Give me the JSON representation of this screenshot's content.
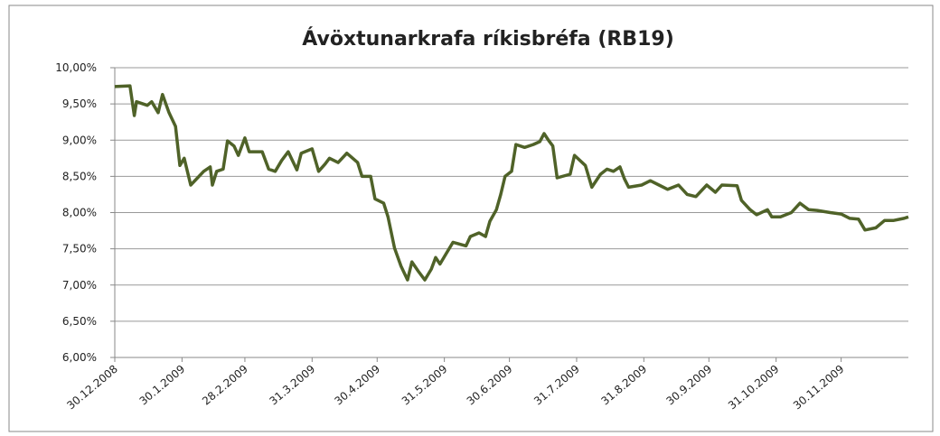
{
  "chart_data": {
    "type": "line",
    "title": "Ávöxtunarkrafa ríkisbréfa (RB19)",
    "x": [
      "2008-12-30",
      "2009-01-06",
      "2009-01-08",
      "2009-01-09",
      "2009-01-14",
      "2009-01-16",
      "2009-01-19",
      "2009-01-21",
      "2009-01-24",
      "2009-01-27",
      "2009-01-29",
      "2009-01-31",
      "2009-02-03",
      "2009-02-09",
      "2009-02-12",
      "2009-02-13",
      "2009-02-15",
      "2009-02-18",
      "2009-02-20",
      "2009-02-23",
      "2009-02-25",
      "2009-02-28",
      "2009-03-02",
      "2009-03-08",
      "2009-03-11",
      "2009-03-14",
      "2009-03-17",
      "2009-03-20",
      "2009-03-24",
      "2009-03-26",
      "2009-03-31",
      "2009-04-03",
      "2009-04-06",
      "2009-04-08",
      "2009-04-12",
      "2009-04-16",
      "2009-04-21",
      "2009-04-23",
      "2009-04-27",
      "2009-04-29",
      "2009-05-03",
      "2009-05-05",
      "2009-05-08",
      "2009-05-11",
      "2009-05-14",
      "2009-05-16",
      "2009-05-19",
      "2009-05-22",
      "2009-05-25",
      "2009-05-27",
      "2009-05-29",
      "2009-06-01",
      "2009-06-04",
      "2009-06-10",
      "2009-06-12",
      "2009-06-16",
      "2009-06-19",
      "2009-06-21",
      "2009-06-24",
      "2009-06-26",
      "2009-06-28",
      "2009-07-01",
      "2009-07-03",
      "2009-07-07",
      "2009-07-11",
      "2009-07-14",
      "2009-07-16",
      "2009-07-18",
      "2009-07-20",
      "2009-07-22",
      "2009-07-28",
      "2009-07-30",
      "2009-08-04",
      "2009-08-07",
      "2009-08-11",
      "2009-08-14",
      "2009-08-17",
      "2009-08-20",
      "2009-08-22",
      "2009-08-24",
      "2009-08-30",
      "2009-09-03",
      "2009-09-07",
      "2009-09-11",
      "2009-09-16",
      "2009-09-20",
      "2009-09-24",
      "2009-09-29",
      "2009-10-03",
      "2009-10-06",
      "2009-10-13",
      "2009-10-15",
      "2009-10-19",
      "2009-10-22",
      "2009-10-27",
      "2009-10-29",
      "2009-11-02",
      "2009-11-07",
      "2009-11-11",
      "2009-11-15",
      "2009-11-19",
      "2009-11-25",
      "2009-11-30",
      "2009-12-04",
      "2009-12-08",
      "2009-12-11",
      "2009-12-16",
      "2009-12-20",
      "2009-12-24",
      "2009-12-29",
      "2009-12-31"
    ],
    "series": [
      {
        "name": "RB19",
        "color": "#4f6228",
        "values": [
          9.74,
          9.75,
          9.34,
          9.53,
          9.48,
          9.53,
          9.38,
          9.63,
          9.38,
          9.19,
          8.65,
          8.75,
          8.38,
          8.57,
          8.63,
          8.38,
          8.57,
          8.6,
          8.99,
          8.92,
          8.79,
          9.03,
          8.84,
          8.84,
          8.6,
          8.57,
          8.72,
          8.84,
          8.59,
          8.82,
          8.88,
          8.57,
          8.67,
          8.75,
          8.69,
          8.82,
          8.69,
          8.5,
          8.5,
          8.19,
          8.13,
          7.94,
          7.51,
          7.26,
          7.07,
          7.32,
          7.19,
          7.07,
          7.22,
          7.38,
          7.29,
          7.44,
          7.59,
          7.54,
          7.67,
          7.72,
          7.67,
          7.88,
          8.04,
          8.25,
          8.5,
          8.57,
          8.94,
          8.9,
          8.94,
          8.98,
          9.09,
          9.0,
          8.92,
          8.48,
          8.53,
          8.79,
          8.65,
          8.35,
          8.53,
          8.6,
          8.57,
          8.63,
          8.47,
          8.35,
          8.38,
          8.44,
          8.38,
          8.32,
          8.38,
          8.25,
          8.22,
          8.38,
          8.28,
          8.38,
          8.37,
          8.17,
          8.04,
          7.97,
          8.04,
          7.94,
          7.94,
          8.0,
          8.13,
          8.04,
          8.03,
          8.0,
          7.98,
          7.92,
          7.91,
          7.76,
          7.79,
          7.89,
          7.89,
          7.92,
          7.94
        ]
      }
    ],
    "xlim": [
      "2008-12-30",
      "2009-12-31"
    ],
    "xticks": [
      {
        "value": "2008-12-30",
        "label": "30.12.2008"
      },
      {
        "value": "2009-01-30",
        "label": "30.1.2009"
      },
      {
        "value": "2009-02-28",
        "label": "28.2.2009"
      },
      {
        "value": "2009-03-31",
        "label": "31.3.2009"
      },
      {
        "value": "2009-04-30",
        "label": "30.4.2009"
      },
      {
        "value": "2009-05-31",
        "label": "31.5.2009"
      },
      {
        "value": "2009-06-30",
        "label": "30.6.2009"
      },
      {
        "value": "2009-07-31",
        "label": "31.7.2009"
      },
      {
        "value": "2009-08-31",
        "label": "31.8.2009"
      },
      {
        "value": "2009-09-30",
        "label": "30.9.2009"
      },
      {
        "value": "2009-10-31",
        "label": "31.10.2009"
      },
      {
        "value": "2009-11-30",
        "label": "30.11.2009"
      }
    ],
    "ylim": [
      6,
      10
    ],
    "yticks": [
      {
        "value": 6,
        "label": "6,00%"
      },
      {
        "value": 6.5,
        "label": "6,50%"
      },
      {
        "value": 7,
        "label": "7,00%"
      },
      {
        "value": 7.5,
        "label": "7,50%"
      },
      {
        "value": 8,
        "label": "8,00%"
      },
      {
        "value": 8.5,
        "label": "8,50%"
      },
      {
        "value": 9,
        "label": "9,00%"
      },
      {
        "value": 9.5,
        "label": "9,50%"
      },
      {
        "value": 10,
        "label": "10,00%"
      }
    ],
    "grid": true
  }
}
